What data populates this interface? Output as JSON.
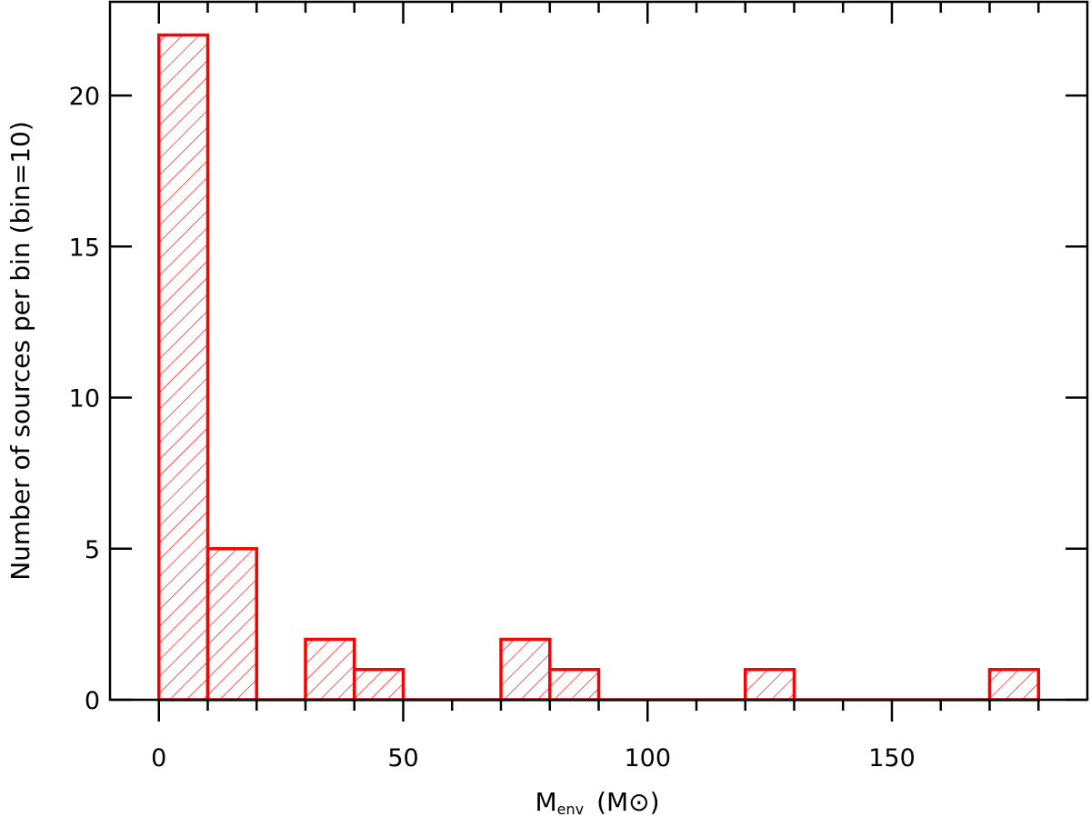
{
  "chart_data": {
    "type": "bar",
    "title": "",
    "xlabel": {
      "main": "M",
      "sub": "env",
      "unit_open": "(M",
      "unit_symbol": "⊙",
      "unit_close": ")"
    },
    "ylabel": "Number of sources per bin (bin=10)",
    "xlim": [
      -10,
      190
    ],
    "ylim": [
      0,
      23.1
    ],
    "x_ticks": [
      0,
      50,
      100,
      150
    ],
    "y_ticks": [
      0,
      5,
      10,
      15,
      20
    ],
    "bin_width": 10,
    "bins": [
      {
        "start": 0,
        "end": 10,
        "count": 22
      },
      {
        "start": 10,
        "end": 20,
        "count": 5
      },
      {
        "start": 20,
        "end": 30,
        "count": 0
      },
      {
        "start": 30,
        "end": 40,
        "count": 2
      },
      {
        "start": 40,
        "end": 50,
        "count": 1
      },
      {
        "start": 50,
        "end": 60,
        "count": 0
      },
      {
        "start": 60,
        "end": 70,
        "count": 0
      },
      {
        "start": 70,
        "end": 80,
        "count": 2
      },
      {
        "start": 80,
        "end": 90,
        "count": 1
      },
      {
        "start": 90,
        "end": 100,
        "count": 0
      },
      {
        "start": 100,
        "end": 110,
        "count": 0
      },
      {
        "start": 110,
        "end": 120,
        "count": 0
      },
      {
        "start": 120,
        "end": 130,
        "count": 1
      },
      {
        "start": 130,
        "end": 140,
        "count": 0
      },
      {
        "start": 140,
        "end": 150,
        "count": 0
      },
      {
        "start": 150,
        "end": 160,
        "count": 0
      },
      {
        "start": 160,
        "end": 170,
        "count": 0
      },
      {
        "start": 170,
        "end": 180,
        "count": 1
      }
    ],
    "bar_color": "#ff0000",
    "fill": "diagonal-hatch",
    "grid": false,
    "legend": "none"
  }
}
